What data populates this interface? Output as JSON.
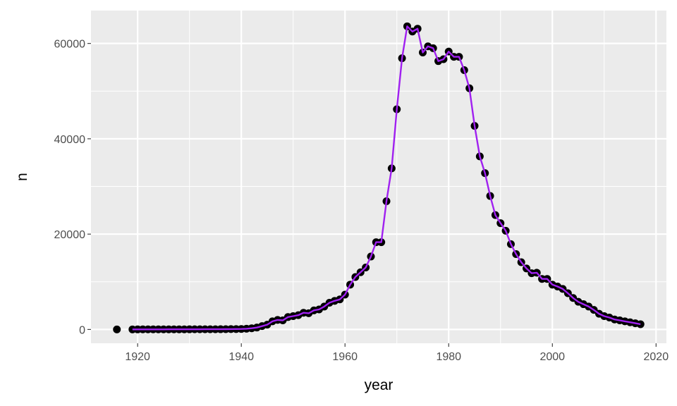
{
  "chart_data": {
    "type": "line",
    "title": "",
    "xlabel": "year",
    "ylabel": "n",
    "xlim": [
      1911,
      2022
    ],
    "ylim": [
      -2900,
      66900
    ],
    "x_ticks": [
      1920,
      1940,
      1960,
      1980,
      2000,
      2020
    ],
    "y_ticks": [
      0,
      20000,
      40000,
      60000
    ],
    "x_tick_labels": [
      "1920",
      "1940",
      "1960",
      "1980",
      "2000",
      "2020"
    ],
    "y_tick_labels": [
      "0",
      "20000",
      "40000",
      "60000"
    ],
    "grid": true,
    "line_color": "#a020f0",
    "point_color": "#000000",
    "panel_background": "#ebebeb",
    "x": [
      1916,
      1919,
      1920,
      1921,
      1922,
      1923,
      1924,
      1925,
      1926,
      1927,
      1928,
      1929,
      1930,
      1931,
      1932,
      1933,
      1934,
      1935,
      1936,
      1937,
      1938,
      1939,
      1940,
      1941,
      1942,
      1943,
      1944,
      1945,
      1946,
      1947,
      1948,
      1949,
      1950,
      1951,
      1952,
      1953,
      1954,
      1955,
      1956,
      1957,
      1958,
      1959,
      1960,
      1961,
      1962,
      1963,
      1964,
      1965,
      1966,
      1967,
      1968,
      1969,
      1970,
      1971,
      1972,
      1973,
      1974,
      1975,
      1976,
      1977,
      1978,
      1979,
      1980,
      1981,
      1982,
      1983,
      1984,
      1985,
      1986,
      1987,
      1988,
      1989,
      1990,
      1991,
      1992,
      1993,
      1994,
      1995,
      1996,
      1997,
      1998,
      1999,
      2000,
      2001,
      2002,
      2003,
      2004,
      2005,
      2006,
      2007,
      2008,
      2009,
      2010,
      2011,
      2012,
      2013,
      2014,
      2015,
      2016,
      2017
    ],
    "y": [
      5,
      10,
      12,
      14,
      15,
      17,
      18,
      20,
      22,
      24,
      25,
      27,
      30,
      32,
      35,
      38,
      40,
      45,
      50,
      60,
      70,
      85,
      100,
      150,
      250,
      400,
      700,
      1000,
      1700,
      2000,
      1900,
      2600,
      2800,
      3000,
      3500,
      3400,
      4000,
      4200,
      4800,
      5600,
      6000,
      6300,
      7300,
      9400,
      11000,
      12000,
      13000,
      15300,
      18300,
      18300,
      26900,
      33800,
      46200,
      56900,
      63600,
      62500,
      63100,
      58100,
      59400,
      59000,
      56300,
      56700,
      58300,
      57200,
      57200,
      54400,
      50600,
      42700,
      36300,
      32800,
      28000,
      24000,
      22300,
      20700,
      17900,
      15800,
      14100,
      12800,
      11800,
      11900,
      10600,
      10600,
      9400,
      9000,
      8500,
      7600,
      6600,
      5800,
      5300,
      4800,
      4100,
      3300,
      2800,
      2500,
      2100,
      1900,
      1700,
      1500,
      1300,
      1100
    ]
  }
}
